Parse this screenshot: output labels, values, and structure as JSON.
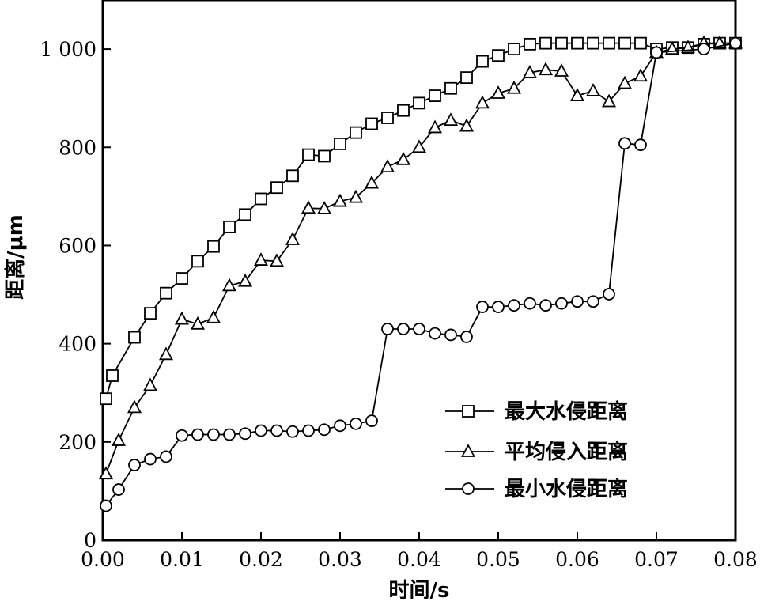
{
  "chart_data": {
    "type": "line",
    "xlabel": "时间/s",
    "ylabel": "距离/μm",
    "xlim": [
      0,
      0.08
    ],
    "ylim": [
      0,
      1100
    ],
    "xticks": [
      "0.00",
      "0.01",
      "0.02",
      "0.03",
      "0.04",
      "0.05",
      "0.06",
      "0.07",
      "0.08"
    ],
    "yticks": [
      "0",
      "200",
      "400",
      "600",
      "800",
      "1 000"
    ],
    "xtick_values": [
      0,
      0.01,
      0.02,
      0.03,
      0.04,
      0.05,
      0.06,
      0.07,
      0.08
    ],
    "ytick_values": [
      0,
      200,
      400,
      600,
      800,
      1000
    ],
    "grid": false,
    "legend_position": "bottom-right",
    "series": [
      {
        "name": "最大水侵距离",
        "marker": "square",
        "x": [
          0.0004,
          0.0012,
          0.004,
          0.006,
          0.008,
          0.01,
          0.012,
          0.014,
          0.016,
          0.018,
          0.02,
          0.022,
          0.024,
          0.026,
          0.028,
          0.03,
          0.032,
          0.034,
          0.036,
          0.038,
          0.04,
          0.042,
          0.044,
          0.046,
          0.048,
          0.05,
          0.052,
          0.054,
          0.056,
          0.058,
          0.06,
          0.062,
          0.064,
          0.066,
          0.068,
          0.07,
          0.072,
          0.074,
          0.076,
          0.078,
          0.08
        ],
        "y": [
          288,
          335,
          413,
          462,
          503,
          533,
          568,
          598,
          638,
          663,
          695,
          718,
          742,
          785,
          782,
          807,
          830,
          848,
          860,
          875,
          890,
          905,
          920,
          942,
          975,
          987,
          1000,
          1010,
          1012,
          1012,
          1012,
          1012,
          1012,
          1012,
          1012,
          1000,
          1003,
          1003,
          1010,
          1012,
          1012
        ]
      },
      {
        "name": "平均侵入距离",
        "marker": "triangle",
        "x": [
          0.0004,
          0.002,
          0.004,
          0.006,
          0.008,
          0.01,
          0.012,
          0.014,
          0.016,
          0.018,
          0.02,
          0.022,
          0.024,
          0.026,
          0.028,
          0.03,
          0.032,
          0.034,
          0.036,
          0.038,
          0.04,
          0.042,
          0.044,
          0.046,
          0.048,
          0.05,
          0.052,
          0.054,
          0.056,
          0.058,
          0.06,
          0.062,
          0.064,
          0.066,
          0.068,
          0.07,
          0.072,
          0.074,
          0.076,
          0.078,
          0.08
        ],
        "y": [
          135,
          203,
          270,
          315,
          378,
          450,
          440,
          453,
          518,
          527,
          570,
          568,
          612,
          676,
          675,
          690,
          698,
          727,
          760,
          775,
          800,
          840,
          855,
          843,
          890,
          910,
          920,
          952,
          958,
          955,
          905,
          915,
          893,
          930,
          945,
          993,
          1000,
          1003,
          1012,
          1012,
          1012
        ]
      },
      {
        "name": "最小水侵距离",
        "marker": "circle",
        "x": [
          0.0004,
          0.002,
          0.004,
          0.006,
          0.008,
          0.01,
          0.012,
          0.014,
          0.016,
          0.018,
          0.02,
          0.022,
          0.024,
          0.026,
          0.028,
          0.03,
          0.032,
          0.034,
          0.036,
          0.038,
          0.04,
          0.042,
          0.044,
          0.046,
          0.048,
          0.05,
          0.052,
          0.054,
          0.056,
          0.058,
          0.06,
          0.062,
          0.064,
          0.066,
          0.068,
          0.07,
          0.076,
          0.08
        ],
        "y": [
          70,
          103,
          153,
          165,
          170,
          213,
          215,
          215,
          215,
          217,
          223,
          223,
          221,
          223,
          225,
          233,
          237,
          243,
          430,
          430,
          430,
          421,
          418,
          414,
          475,
          475,
          478,
          482,
          478,
          482,
          486,
          486,
          501,
          808,
          805,
          993,
          1000,
          1012
        ]
      }
    ]
  }
}
